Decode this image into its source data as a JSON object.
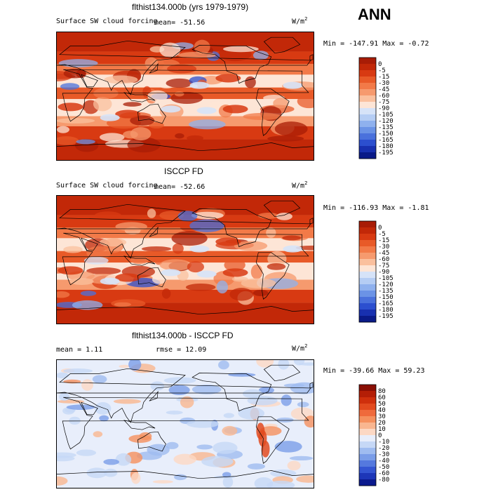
{
  "annotation": "ANN",
  "panels": [
    {
      "title": "flthist134.000b (yrs 1979-1979)",
      "left_label": "Surface SW cloud forcing",
      "mid_label": "mean=  -51.56",
      "unit_base": "W/m",
      "unit_exp": "2",
      "minmax": "Min = -147.91 Max =  -0.72"
    },
    {
      "title": "ISCCP FD",
      "left_label": "Surface SW cloud forcing",
      "mid_label": "mean=  -52.66",
      "unit_base": "W/m",
      "unit_exp": "2",
      "minmax": "Min = -116.93 Max =  -1.81"
    },
    {
      "title": "flthist134.000b - ISCCP FD",
      "left_label": "mean =   1.11",
      "mid_label": "rmse =  12.09",
      "unit_base": "W/m",
      "unit_exp": "2",
      "minmax": "Min = -39.66 Max =  59.23"
    }
  ],
  "chart_data": [
    {
      "type": "heatmap",
      "title": "flthist134.000b (yrs 1979-1979)",
      "variable": "Surface SW cloud forcing",
      "units": "W/m^2",
      "mean": -51.56,
      "min": -147.91,
      "max": -0.72,
      "colorbar_levels": [
        0,
        -5,
        -15,
        -30,
        -45,
        -60,
        -75,
        -90,
        -105,
        -120,
        -135,
        -150,
        -165,
        -180,
        -195
      ],
      "colorbar_colors": [
        "#a81c06",
        "#c22808",
        "#d83a12",
        "#e85a28",
        "#f27a48",
        "#f69a6e",
        "#fac09e",
        "#fde5d6",
        "#d6e3f8",
        "#b5cdf4",
        "#8fb1ee",
        "#6b93e6",
        "#4a71dc",
        "#2c4fcf",
        "#1830b0",
        "#0a1a88"
      ]
    },
    {
      "type": "heatmap",
      "title": "ISCCP FD",
      "variable": "Surface SW cloud forcing",
      "units": "W/m^2",
      "mean": -52.66,
      "min": -116.93,
      "max": -1.81,
      "colorbar_levels": [
        0,
        -5,
        -15,
        -30,
        -45,
        -60,
        -75,
        -90,
        -105,
        -120,
        -135,
        -150,
        -165,
        -180,
        -195
      ],
      "colorbar_colors": [
        "#a81c06",
        "#c22808",
        "#d83a12",
        "#e85a28",
        "#f27a48",
        "#f69a6e",
        "#fac09e",
        "#fde5d6",
        "#d6e3f8",
        "#b5cdf4",
        "#8fb1ee",
        "#6b93e6",
        "#4a71dc",
        "#2c4fcf",
        "#1830b0",
        "#0a1a88"
      ]
    },
    {
      "type": "heatmap",
      "title": "flthist134.000b - ISCCP FD",
      "units": "W/m^2",
      "mean": 1.11,
      "rmse": 12.09,
      "min": -39.66,
      "max": 59.23,
      "colorbar_levels": [
        80,
        60,
        50,
        40,
        30,
        20,
        10,
        0,
        -10,
        -20,
        -30,
        -40,
        -50,
        -60,
        -80
      ],
      "colorbar_colors": [
        "#8a0f04",
        "#b41e06",
        "#cf2f0c",
        "#e24a1e",
        "#ef6a3c",
        "#f5905e",
        "#f9b690",
        "#fcd8c4",
        "#e8eefb",
        "#c6d8f6",
        "#9fbcf0",
        "#7a9de8",
        "#5579de",
        "#3455d2",
        "#1d36b8",
        "#0b1a8e"
      ]
    }
  ]
}
